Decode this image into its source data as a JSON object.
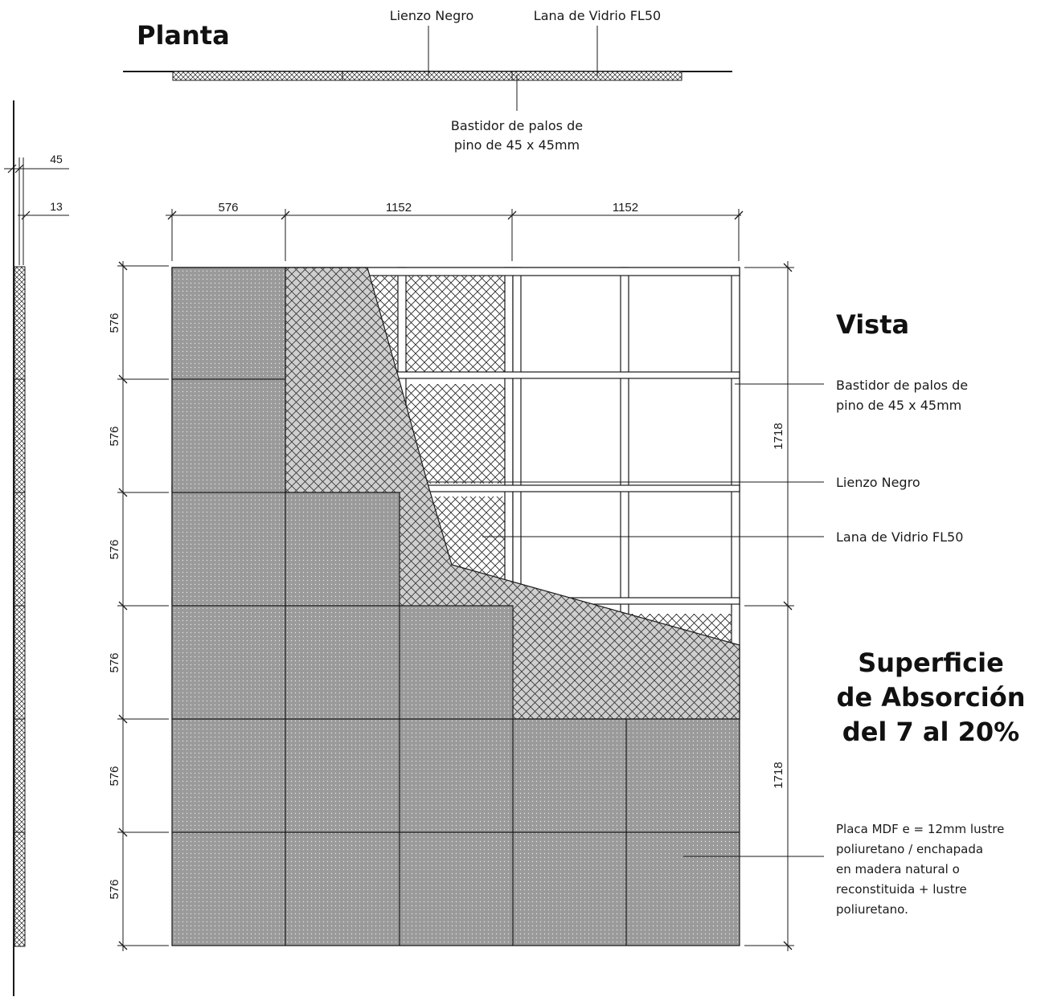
{
  "titles": {
    "planta": "Planta",
    "vista": "Vista",
    "superficie_line1": "Superficie",
    "superficie_line2": "de Absorción",
    "superficie_line3": "del 7 al 20%"
  },
  "labels": {
    "lienzo_negro": "Lienzo Negro",
    "lana_vidrio": "Lana de Vidrio FL50",
    "bastidor_line1": "Bastidor de palos de",
    "bastidor_line2": "pino de 45 x 45mm",
    "placa_line1": "Placa MDF e = 12mm lustre",
    "placa_line2": "poliuretano / enchapada",
    "placa_line3": "en madera natural o",
    "placa_line4": "reconstituida + lustre",
    "placa_line5": "poliuretano."
  },
  "dimensions": {
    "top": [
      "576",
      "1152",
      "1152"
    ],
    "left": [
      "576",
      "576",
      "576",
      "576",
      "576",
      "576"
    ],
    "right": [
      "1718",
      "1718"
    ],
    "section": [
      "45",
      "13"
    ]
  },
  "colors": {
    "panel_fill": "#9a9a9a",
    "hatch_fill": "#cfcfcf",
    "line": "#1a1a1a"
  }
}
